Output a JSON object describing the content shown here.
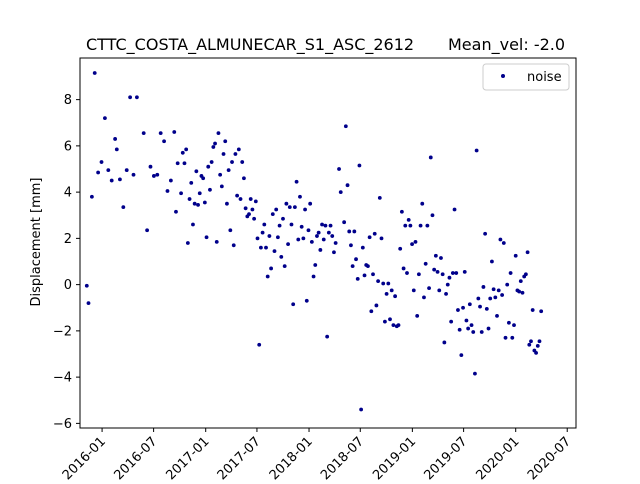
{
  "chart_data": {
    "type": "scatter",
    "title": "CTTC_COSTA_ALMUNECAR_S1_ASC_2612",
    "title_suffix": "Mean_vel: -2.0",
    "xlabel": "",
    "ylabel": "Displacement [mm]",
    "x_is_date": true,
    "xlim": [
      "2015-10-15",
      "2020-08-01"
    ],
    "ylim": [
      -6.2,
      9.8
    ],
    "x_ticks": [
      "2016-01",
      "2016-07",
      "2017-01",
      "2017-07",
      "2018-01",
      "2018-07",
      "2019-01",
      "2019-07",
      "2020-01",
      "2020-07"
    ],
    "y_ticks": [
      -6,
      -4,
      -2,
      0,
      2,
      4,
      6,
      8
    ],
    "grid": false,
    "legend_position": "top-right",
    "marker_color": "#00008b",
    "series": [
      {
        "name": "noise",
        "points": [
          [
            "2015-11-08",
            -0.05
          ],
          [
            "2015-11-14",
            -0.8
          ],
          [
            "2015-11-26",
            3.8
          ],
          [
            "2015-12-06",
            9.15
          ],
          [
            "2015-12-18",
            4.85
          ],
          [
            "2015-12-30",
            5.3
          ],
          [
            "2016-01-11",
            7.2
          ],
          [
            "2016-01-23",
            4.95
          ],
          [
            "2016-02-04",
            4.5
          ],
          [
            "2016-02-16",
            6.3
          ],
          [
            "2016-02-22",
            5.85
          ],
          [
            "2016-03-04",
            4.55
          ],
          [
            "2016-03-16",
            3.35
          ],
          [
            "2016-03-28",
            4.95
          ],
          [
            "2016-04-09",
            8.1
          ],
          [
            "2016-04-21",
            4.75
          ],
          [
            "2016-05-03",
            8.1
          ],
          [
            "2016-05-27",
            6.55
          ],
          [
            "2016-06-08",
            2.35
          ],
          [
            "2016-06-20",
            5.1
          ],
          [
            "2016-07-02",
            4.7
          ],
          [
            "2016-07-14",
            4.75
          ],
          [
            "2016-07-26",
            6.55
          ],
          [
            "2016-08-07",
            6.2
          ],
          [
            "2016-08-19",
            4.05
          ],
          [
            "2016-08-31",
            4.5
          ],
          [
            "2016-09-12",
            6.6
          ],
          [
            "2016-09-18",
            3.15
          ],
          [
            "2016-09-24",
            5.25
          ],
          [
            "2016-10-06",
            3.95
          ],
          [
            "2016-10-12",
            5.7
          ],
          [
            "2016-10-18",
            5.25
          ],
          [
            "2016-10-24",
            5.85
          ],
          [
            "2016-10-30",
            1.8
          ],
          [
            "2016-11-05",
            3.7
          ],
          [
            "2016-11-11",
            4.4
          ],
          [
            "2016-11-17",
            2.6
          ],
          [
            "2016-11-23",
            3.5
          ],
          [
            "2016-11-29",
            4.9
          ],
          [
            "2016-12-05",
            3.45
          ],
          [
            "2016-12-11",
            3.95
          ],
          [
            "2016-12-17",
            4.7
          ],
          [
            "2016-12-23",
            4.6
          ],
          [
            "2016-12-29",
            3.55
          ],
          [
            "2017-01-04",
            2.05
          ],
          [
            "2017-01-10",
            5.1
          ],
          [
            "2017-01-16",
            4.1
          ],
          [
            "2017-01-22",
            5.3
          ],
          [
            "2017-01-28",
            5.95
          ],
          [
            "2017-02-03",
            6.1
          ],
          [
            "2017-02-09",
            1.85
          ],
          [
            "2017-02-15",
            6.55
          ],
          [
            "2017-02-21",
            4.75
          ],
          [
            "2017-02-27",
            4.25
          ],
          [
            "2017-03-05",
            5.65
          ],
          [
            "2017-03-11",
            6.2
          ],
          [
            "2017-03-17",
            3.5
          ],
          [
            "2017-03-23",
            4.95
          ],
          [
            "2017-03-29",
            2.35
          ],
          [
            "2017-04-04",
            5.3
          ],
          [
            "2017-04-10",
            1.7
          ],
          [
            "2017-04-16",
            5.65
          ],
          [
            "2017-04-22",
            3.85
          ],
          [
            "2017-04-28",
            5.85
          ],
          [
            "2017-05-04",
            3.7
          ],
          [
            "2017-05-10",
            5.3
          ],
          [
            "2017-05-16",
            4.6
          ],
          [
            "2017-05-22",
            3.3
          ],
          [
            "2017-05-28",
            2.95
          ],
          [
            "2017-06-03",
            3.05
          ],
          [
            "2017-06-09",
            3.7
          ],
          [
            "2017-06-15",
            3.25
          ],
          [
            "2017-06-21",
            2.85
          ],
          [
            "2017-06-27",
            3.6
          ],
          [
            "2017-07-03",
            2.0
          ],
          [
            "2017-07-09",
            -2.6
          ],
          [
            "2017-07-15",
            1.6
          ],
          [
            "2017-07-21",
            2.25
          ],
          [
            "2017-07-27",
            2.6
          ],
          [
            "2017-08-02",
            1.6
          ],
          [
            "2017-08-08",
            0.35
          ],
          [
            "2017-08-14",
            2.1
          ],
          [
            "2017-08-20",
            0.7
          ],
          [
            "2017-08-26",
            3.05
          ],
          [
            "2017-09-01",
            1.45
          ],
          [
            "2017-09-07",
            3.25
          ],
          [
            "2017-09-13",
            2.05
          ],
          [
            "2017-09-19",
            2.55
          ],
          [
            "2017-09-25",
            1.2
          ],
          [
            "2017-10-01",
            2.85
          ],
          [
            "2017-10-07",
            0.8
          ],
          [
            "2017-10-13",
            3.5
          ],
          [
            "2017-10-19",
            1.75
          ],
          [
            "2017-10-25",
            3.35
          ],
          [
            "2017-10-31",
            2.6
          ],
          [
            "2017-11-06",
            -0.85
          ],
          [
            "2017-11-12",
            3.35
          ],
          [
            "2017-11-18",
            4.45
          ],
          [
            "2017-11-24",
            1.95
          ],
          [
            "2017-11-30",
            3.8
          ],
          [
            "2017-12-06",
            2.5
          ],
          [
            "2017-12-12",
            2.0
          ],
          [
            "2017-12-18",
            3.25
          ],
          [
            "2017-12-24",
            -0.7
          ],
          [
            "2017-12-30",
            2.35
          ],
          [
            "2018-01-05",
            3.5
          ],
          [
            "2018-01-11",
            1.85
          ],
          [
            "2018-01-17",
            0.35
          ],
          [
            "2018-01-23",
            0.85
          ],
          [
            "2018-01-29",
            2.1
          ],
          [
            "2018-02-04",
            2.25
          ],
          [
            "2018-02-10",
            1.5
          ],
          [
            "2018-02-16",
            2.6
          ],
          [
            "2018-02-22",
            1.95
          ],
          [
            "2018-02-28",
            2.55
          ],
          [
            "2018-03-06",
            -2.25
          ],
          [
            "2018-03-12",
            2.25
          ],
          [
            "2018-03-18",
            2.55
          ],
          [
            "2018-03-24",
            2.1
          ],
          [
            "2018-03-30",
            1.4
          ],
          [
            "2018-04-05",
            1.8
          ],
          [
            "2018-04-17",
            5.0
          ],
          [
            "2018-04-23",
            4.0
          ],
          [
            "2018-05-05",
            2.7
          ],
          [
            "2018-05-11",
            6.85
          ],
          [
            "2018-05-17",
            4.3
          ],
          [
            "2018-05-23",
            2.3
          ],
          [
            "2018-05-29",
            1.7
          ],
          [
            "2018-06-04",
            0.8
          ],
          [
            "2018-06-10",
            2.3
          ],
          [
            "2018-06-16",
            1.1
          ],
          [
            "2018-06-22",
            0.25
          ],
          [
            "2018-06-28",
            5.15
          ],
          [
            "2018-07-04",
            -5.4
          ],
          [
            "2018-07-10",
            1.6
          ],
          [
            "2018-07-16",
            0.4
          ],
          [
            "2018-07-22",
            0.85
          ],
          [
            "2018-07-28",
            0.8
          ],
          [
            "2018-08-03",
            2.05
          ],
          [
            "2018-08-09",
            -1.15
          ],
          [
            "2018-08-15",
            0.45
          ],
          [
            "2018-08-21",
            2.2
          ],
          [
            "2018-08-27",
            -0.9
          ],
          [
            "2018-09-02",
            0.15
          ],
          [
            "2018-09-08",
            3.75
          ],
          [
            "2018-09-14",
            2.0
          ],
          [
            "2018-09-20",
            0.05
          ],
          [
            "2018-09-26",
            -1.6
          ],
          [
            "2018-10-02",
            -0.4
          ],
          [
            "2018-10-08",
            0.05
          ],
          [
            "2018-10-14",
            -1.5
          ],
          [
            "2018-10-20",
            -0.25
          ],
          [
            "2018-10-26",
            -1.75
          ],
          [
            "2018-11-01",
            -0.5
          ],
          [
            "2018-11-07",
            -1.8
          ],
          [
            "2018-11-13",
            -1.75
          ],
          [
            "2018-11-19",
            1.55
          ],
          [
            "2018-11-25",
            3.15
          ],
          [
            "2018-12-01",
            0.7
          ],
          [
            "2018-12-07",
            2.55
          ],
          [
            "2018-12-13",
            0.5
          ],
          [
            "2018-12-19",
            2.8
          ],
          [
            "2018-12-25",
            2.55
          ],
          [
            "2018-12-31",
            1.75
          ],
          [
            "2019-01-06",
            -0.25
          ],
          [
            "2019-01-12",
            1.85
          ],
          [
            "2019-01-18",
            -1.35
          ],
          [
            "2019-01-24",
            0.45
          ],
          [
            "2019-01-30",
            2.55
          ],
          [
            "2019-02-05",
            3.5
          ],
          [
            "2019-02-11",
            -0.55
          ],
          [
            "2019-02-17",
            0.9
          ],
          [
            "2019-02-23",
            2.55
          ],
          [
            "2019-03-01",
            -0.15
          ],
          [
            "2019-03-07",
            5.5
          ],
          [
            "2019-03-13",
            3.0
          ],
          [
            "2019-03-19",
            0.65
          ],
          [
            "2019-03-25",
            1.25
          ],
          [
            "2019-03-31",
            0.55
          ],
          [
            "2019-04-06",
            -0.25
          ],
          [
            "2019-04-12",
            1.15
          ],
          [
            "2019-04-18",
            0.45
          ],
          [
            "2019-04-24",
            -2.5
          ],
          [
            "2019-04-30",
            -0.4
          ],
          [
            "2019-05-06",
            0.0
          ],
          [
            "2019-05-12",
            0.3
          ],
          [
            "2019-05-18",
            -1.6
          ],
          [
            "2019-05-24",
            0.5
          ],
          [
            "2019-05-30",
            3.25
          ],
          [
            "2019-06-05",
            0.5
          ],
          [
            "2019-06-11",
            -1.1
          ],
          [
            "2019-06-17",
            -1.95
          ],
          [
            "2019-06-23",
            -3.05
          ],
          [
            "2019-06-29",
            -1.0
          ],
          [
            "2019-07-05",
            0.55
          ],
          [
            "2019-07-11",
            -1.55
          ],
          [
            "2019-07-17",
            -1.9
          ],
          [
            "2019-07-23",
            -0.85
          ],
          [
            "2019-07-29",
            -1.75
          ],
          [
            "2019-08-04",
            -2.05
          ],
          [
            "2019-08-10",
            -3.85
          ],
          [
            "2019-08-16",
            5.8
          ],
          [
            "2019-08-22",
            -0.6
          ],
          [
            "2019-08-28",
            -0.95
          ],
          [
            "2019-09-03",
            -2.05
          ],
          [
            "2019-09-09",
            -0.1
          ],
          [
            "2019-09-15",
            2.2
          ],
          [
            "2019-09-21",
            -1.05
          ],
          [
            "2019-09-27",
            -1.9
          ],
          [
            "2019-10-03",
            -0.6
          ],
          [
            "2019-10-09",
            1.0
          ],
          [
            "2019-10-15",
            -0.2
          ],
          [
            "2019-10-21",
            -0.55
          ],
          [
            "2019-10-27",
            -1.35
          ],
          [
            "2019-11-02",
            -0.25
          ],
          [
            "2019-11-08",
            1.95
          ],
          [
            "2019-11-14",
            -0.45
          ],
          [
            "2019-11-20",
            1.8
          ],
          [
            "2019-11-26",
            -2.3
          ],
          [
            "2019-12-02",
            0.0
          ],
          [
            "2019-12-08",
            -1.65
          ],
          [
            "2019-12-14",
            0.5
          ],
          [
            "2019-12-20",
            -2.3
          ],
          [
            "2019-12-26",
            -1.75
          ],
          [
            "2020-01-01",
            1.25
          ],
          [
            "2020-01-07",
            -0.25
          ],
          [
            "2020-01-13",
            -0.3
          ],
          [
            "2020-01-19",
            0.15
          ],
          [
            "2020-01-25",
            -0.35
          ],
          [
            "2020-01-31",
            0.35
          ],
          [
            "2020-02-06",
            0.45
          ],
          [
            "2020-02-12",
            1.4
          ],
          [
            "2020-02-18",
            -2.6
          ],
          [
            "2020-02-24",
            -2.45
          ],
          [
            "2020-03-01",
            -1.1
          ],
          [
            "2020-03-07",
            -2.85
          ],
          [
            "2020-03-13",
            -2.95
          ],
          [
            "2020-03-19",
            -2.65
          ],
          [
            "2020-03-25",
            -2.45
          ],
          [
            "2020-03-31",
            -1.15
          ]
        ]
      }
    ]
  }
}
